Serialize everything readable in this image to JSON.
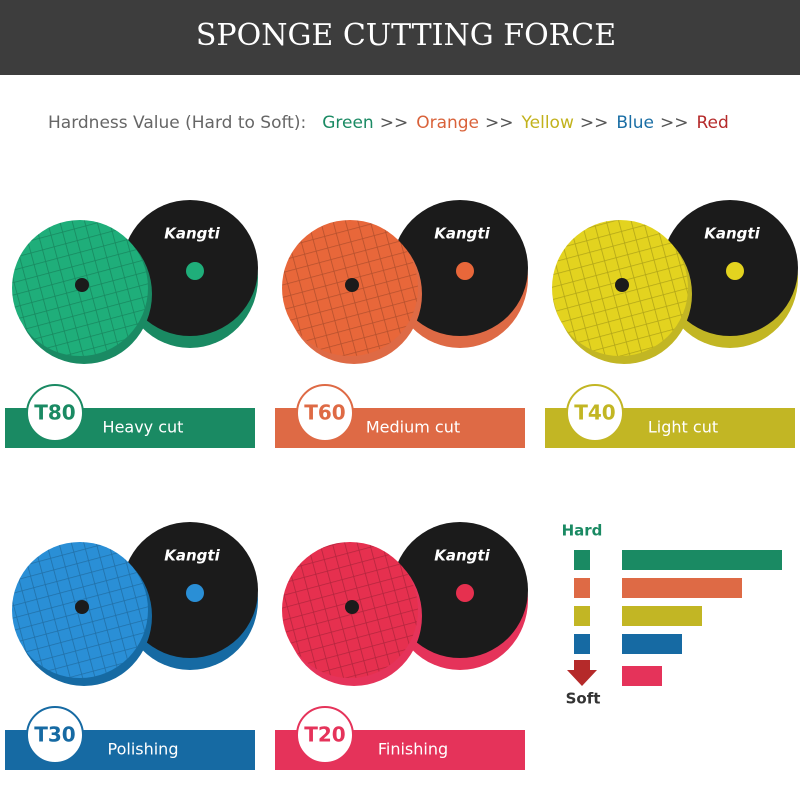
{
  "header": {
    "title": "SPONGE CUTTING FORCE"
  },
  "hardness": {
    "label": "Hardness Value (Hard to Soft):",
    "separator": ">>",
    "colors": [
      {
        "name": "Green",
        "color": "#1a8a63"
      },
      {
        "name": "Orange",
        "color": "#d9623a"
      },
      {
        "name": "Yellow",
        "color": "#c2b21c"
      },
      {
        "name": "Blue",
        "color": "#1a6ea5"
      },
      {
        "name": "Red",
        "color": "#b52a2a"
      }
    ]
  },
  "brand": "Kangti",
  "products": [
    {
      "code": "T80",
      "label": "Heavy cut",
      "color": "#1a8a63",
      "disc": "#1fae7a"
    },
    {
      "code": "T60",
      "label": "Medium cut",
      "color": "#de6a45",
      "disc": "#e8673a"
    },
    {
      "code": "T40",
      "label": "Light  cut",
      "color": "#c2b624",
      "disc": "#e3d31f"
    },
    {
      "code": "T30",
      "label": "Polishing",
      "color": "#166aa3",
      "disc": "#2a8fd6"
    },
    {
      "code": "T20",
      "label": "Finishing",
      "color": "#e5335a",
      "disc": "#e6304f"
    }
  ],
  "scale": {
    "hard": "Hard",
    "soft": "Soft"
  }
}
